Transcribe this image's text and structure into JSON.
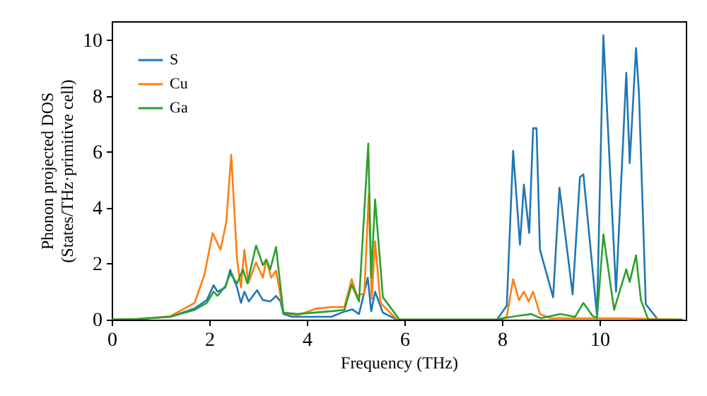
{
  "chart_data": {
    "type": "line",
    "xlabel": "Frequency (THz)",
    "ylabel": "Phonon projected DOS\n(States/THz·primitive cell)",
    "xlim": [
      0,
      11.77
    ],
    "ylim": [
      0,
      10.68
    ],
    "xticks": [
      0,
      2,
      4,
      6,
      8,
      10
    ],
    "yticks": [
      0,
      2,
      4,
      6,
      8,
      10
    ],
    "grid": false,
    "legend": "top left",
    "line_style": "solid",
    "marker": "none",
    "series": [
      {
        "name": "S",
        "color": "#1f77b4",
        "x": [
          0,
          0.5,
          1.2,
          1.7,
          1.95,
          2.09,
          2.17,
          2.33,
          2.43,
          2.57,
          2.65,
          2.72,
          2.81,
          2.98,
          3.1,
          3.25,
          3.37,
          3.46,
          3.52,
          3.7,
          4.5,
          4.79,
          4.93,
          5.07,
          5.25,
          5.32,
          5.4,
          5.56,
          5.85,
          7.9,
          8.1,
          8.23,
          8.37,
          8.45,
          8.56,
          8.64,
          8.71,
          8.78,
          9.05,
          9.18,
          9.45,
          9.6,
          9.67,
          9.95,
          10.08,
          10.34,
          10.55,
          10.62,
          10.75,
          10.81,
          10.95,
          11.2,
          11.7
        ],
        "values": [
          0,
          0.02,
          0.1,
          0.4,
          0.7,
          1.23,
          1.0,
          1.15,
          1.78,
          1.15,
          0.6,
          1.0,
          0.65,
          1.05,
          0.7,
          0.65,
          0.85,
          0.65,
          0.2,
          0.1,
          0.1,
          0.3,
          0.37,
          0.2,
          1.5,
          0.3,
          1.0,
          0.25,
          0,
          0,
          0.5,
          6.04,
          2.68,
          4.83,
          3.1,
          6.85,
          6.85,
          2.5,
          0.8,
          4.72,
          0.9,
          5.1,
          5.2,
          0.15,
          10.18,
          1.0,
          8.83,
          5.6,
          9.72,
          8.1,
          0.55,
          0,
          0
        ]
      },
      {
        "name": "Cu",
        "color": "#ff7f0e",
        "x": [
          0,
          0.5,
          1.2,
          1.7,
          1.9,
          2.07,
          2.23,
          2.35,
          2.45,
          2.57,
          2.65,
          2.72,
          2.8,
          2.96,
          3.1,
          3.17,
          3.27,
          3.37,
          3.52,
          3.8,
          4.2,
          4.5,
          4.77,
          4.92,
          5.03,
          5.18,
          5.27,
          5.33,
          5.4,
          5.51,
          5.85,
          7.9,
          8.1,
          8.23,
          8.35,
          8.45,
          8.55,
          8.64,
          8.78,
          9.0,
          9.7,
          10.5,
          11.7
        ],
        "values": [
          0,
          0.02,
          0.12,
          0.6,
          1.6,
          3.1,
          2.5,
          3.5,
          5.9,
          2.15,
          1.15,
          2.5,
          1.3,
          2.05,
          1.5,
          2.15,
          1.5,
          1.75,
          0.25,
          0.15,
          0.4,
          0.45,
          0.45,
          1.45,
          0.85,
          0.95,
          4.5,
          0.75,
          2.8,
          0.6,
          0,
          0,
          0.1,
          1.45,
          0.7,
          1.0,
          0.65,
          1.0,
          0.2,
          0.05,
          0.05,
          0.05,
          0
        ]
      },
      {
        "name": "Ga",
        "color": "#2ca02c",
        "x": [
          0,
          0.5,
          1.2,
          1.7,
          1.95,
          2.09,
          2.17,
          2.33,
          2.43,
          2.57,
          2.69,
          2.78,
          2.96,
          3.1,
          3.17,
          3.25,
          3.37,
          3.52,
          3.8,
          4.5,
          4.77,
          4.92,
          5.07,
          5.26,
          5.32,
          5.4,
          5.56,
          5.9,
          7.9,
          8.2,
          8.4,
          8.6,
          8.8,
          9.2,
          9.5,
          9.67,
          9.85,
          9.95,
          10.08,
          10.3,
          10.55,
          10.62,
          10.75,
          10.85,
          11.0,
          11.7
        ],
        "values": [
          0,
          0.02,
          0.1,
          0.35,
          0.6,
          1.0,
          0.85,
          1.2,
          1.65,
          1.3,
          1.8,
          1.3,
          2.65,
          1.95,
          2.15,
          1.8,
          2.6,
          0.25,
          0.2,
          0.3,
          0.35,
          1.25,
          0.65,
          6.3,
          1.5,
          4.3,
          0.8,
          0,
          0,
          0.1,
          0.15,
          0.2,
          0.05,
          0.2,
          0.1,
          0.6,
          0.15,
          0.05,
          3.05,
          0.35,
          1.8,
          1.35,
          2.3,
          0.7,
          0,
          0
        ]
      }
    ]
  }
}
